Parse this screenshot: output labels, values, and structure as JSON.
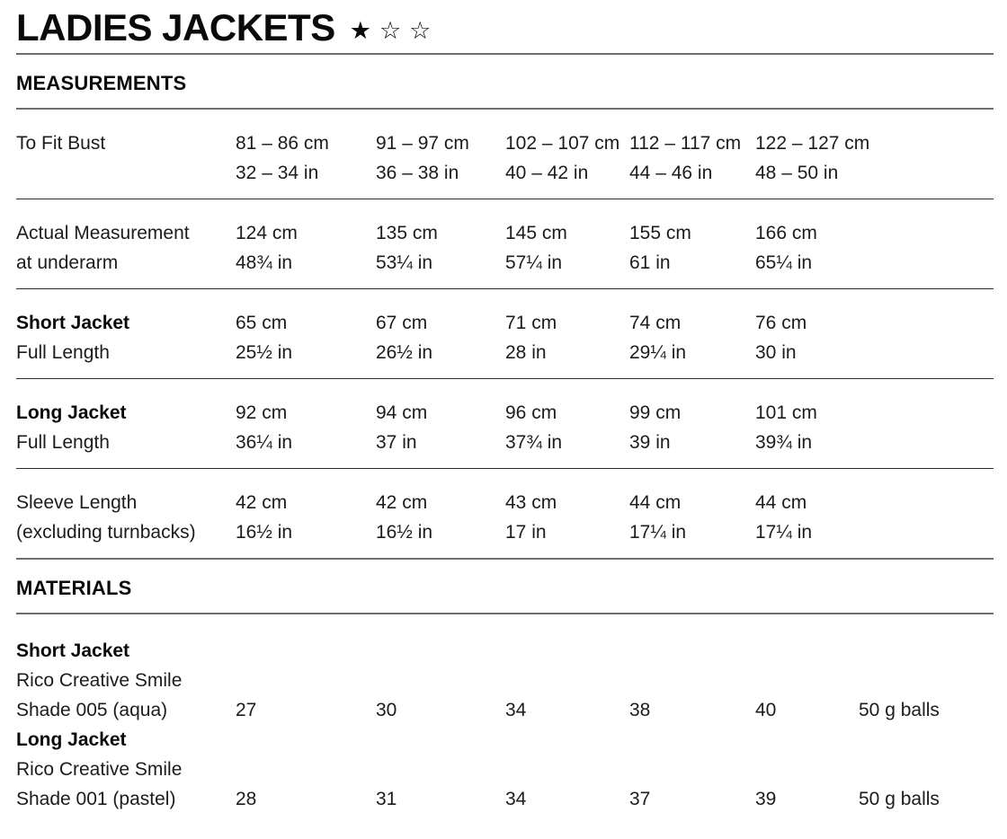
{
  "page": {
    "title": "LADIES JACKETS",
    "stars": [
      {
        "name": "star-filled-icon",
        "glyph": "★"
      },
      {
        "name": "star-outline-icon",
        "glyph": "☆"
      },
      {
        "name": "star-outline-icon",
        "glyph": "☆"
      }
    ]
  },
  "measurements": {
    "heading": "MEASUREMENTS",
    "rows": [
      {
        "label1": "To Fit Bust",
        "label2": "",
        "cells": [
          {
            "cm": "81 – 86 cm",
            "in": "32 – 34 in"
          },
          {
            "cm": "91 – 97 cm",
            "in": "36 – 38 in"
          },
          {
            "cm": "102 – 107 cm",
            "in": "40 – 42 in"
          },
          {
            "cm": "112 – 117 cm",
            "in": "44 – 46 in"
          },
          {
            "cm": "122 – 127 cm",
            "in": "48 – 50 in"
          }
        ]
      },
      {
        "label1": "Actual Measurement",
        "label2": "at underarm",
        "cells": [
          {
            "cm": "124 cm",
            "in": "48¾ in"
          },
          {
            "cm": "135 cm",
            "in": "53¼ in"
          },
          {
            "cm": "145 cm",
            "in": "57¼ in"
          },
          {
            "cm": "155 cm",
            "in": "61 in"
          },
          {
            "cm": "166 cm",
            "in": "65¼ in"
          }
        ]
      },
      {
        "label1": "Short Jacket",
        "label2": "Full Length",
        "cells": [
          {
            "cm": "65 cm",
            "in": "25½ in"
          },
          {
            "cm": "67 cm",
            "in": "26½ in"
          },
          {
            "cm": "71 cm",
            "in": "28 in"
          },
          {
            "cm": "74 cm",
            "in": "29¼ in"
          },
          {
            "cm": "76 cm",
            "in": "30 in"
          }
        ]
      },
      {
        "label1": "Long Jacket",
        "label2": "Full Length",
        "cells": [
          {
            "cm": "92 cm",
            "in": "36¼ in"
          },
          {
            "cm": "94 cm",
            "in": "37 in"
          },
          {
            "cm": "96 cm",
            "in": "37¾ in"
          },
          {
            "cm": "99 cm",
            "in": "39 in"
          },
          {
            "cm": "101 cm",
            "in": "39¾ in"
          }
        ]
      },
      {
        "label1": "Sleeve Length",
        "label2": "(excluding turnbacks)",
        "cells": [
          {
            "cm": "42 cm",
            "in": "16½ in"
          },
          {
            "cm": "42 cm",
            "in": "16½ in"
          },
          {
            "cm": "43 cm",
            "in": "17 in"
          },
          {
            "cm": "44 cm",
            "in": "17¼ in"
          },
          {
            "cm": "44 cm",
            "in": "17¼ in"
          }
        ]
      }
    ]
  },
  "materials": {
    "heading": "MATERIALS",
    "items": [
      {
        "garment": "Short Jacket",
        "yarn": "Rico Creative Smile",
        "shade": "Shade 005 (aqua)",
        "quantities": [
          "27",
          "30",
          "34",
          "38",
          "40"
        ],
        "unit": "50 g balls"
      },
      {
        "garment": "Long Jacket",
        "yarn": "Rico Creative Smile",
        "shade": "Shade 001 (pastel)",
        "quantities": [
          "28",
          "31",
          "34",
          "37",
          "39"
        ],
        "unit": "50 g balls"
      }
    ]
  }
}
